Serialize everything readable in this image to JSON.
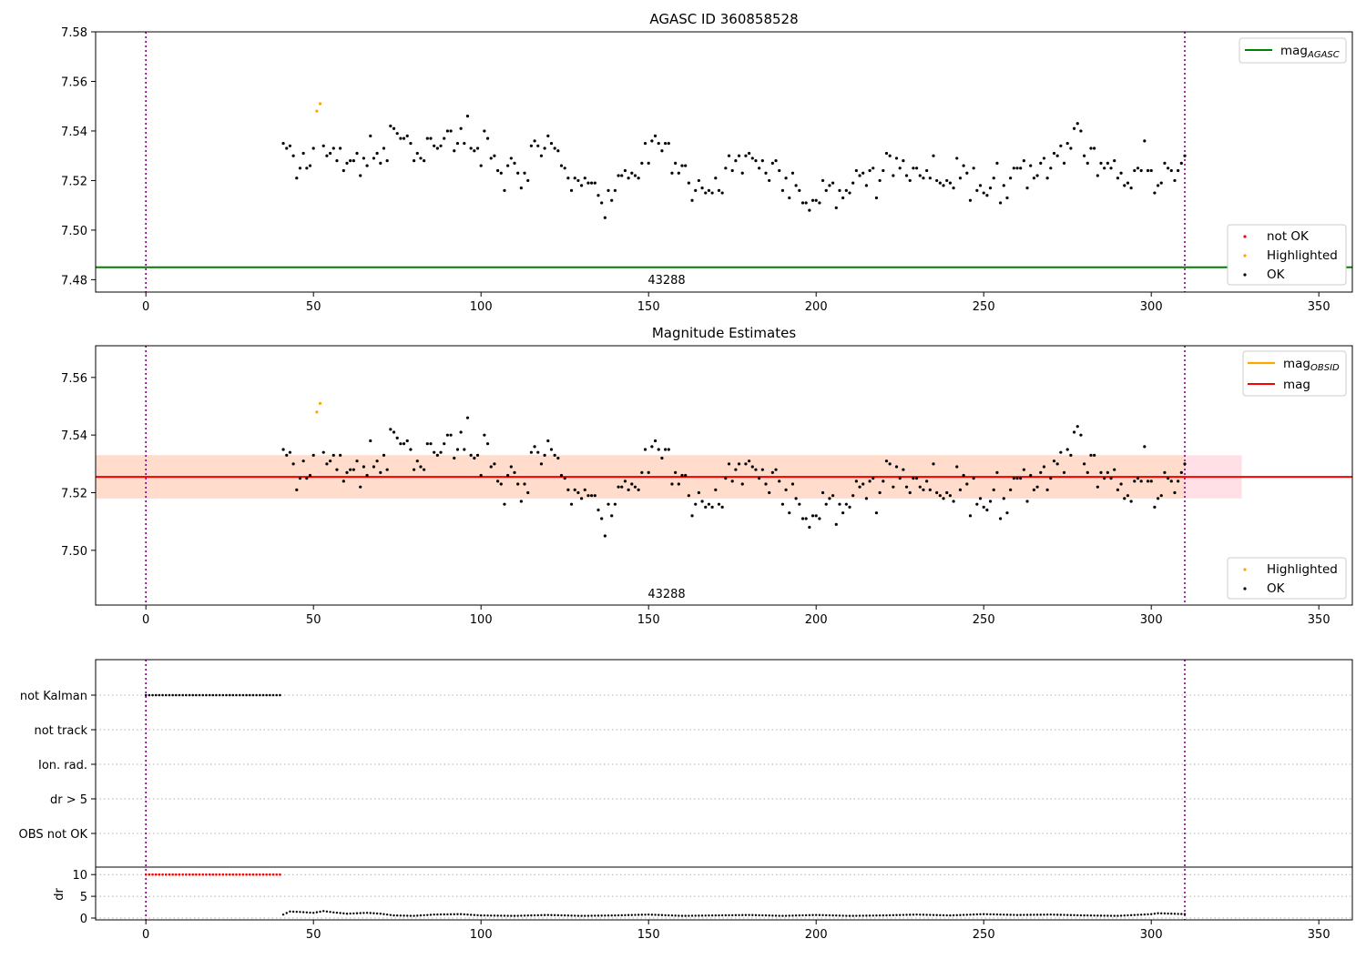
{
  "colors": {
    "ok": "#000000",
    "highlighted": "#ffa500",
    "not_ok": "#ff0000",
    "agasc_line": "#008000",
    "mag_line": "#ff0000",
    "obsid_line": "#ffa500",
    "obsid_band": "#ffdcc8",
    "mag_band": "#ffe0e6",
    "marker_line": "#800080",
    "grid": "#b0b0b0"
  },
  "chart_data": [
    {
      "type": "scatter",
      "title": "AGASC ID 360858528",
      "xlim": [
        -15,
        360
      ],
      "ylim": [
        7.475,
        7.58
      ],
      "xticks": [
        "0",
        "50",
        "100",
        "150",
        "200",
        "250",
        "300",
        "350"
      ],
      "yticks": [
        "7.48",
        "7.50",
        "7.52",
        "7.54",
        "7.56",
        "7.58"
      ],
      "vlines": [
        0,
        310
      ],
      "hline": {
        "y": 7.485,
        "name": "mag",
        "sub": "AGASC"
      },
      "obsid_label": "43288",
      "legend_lines_position": "top-right",
      "legend_points_position": "lower-right",
      "legend_points": [
        "not OK",
        "Highlighted",
        "OK"
      ],
      "highlighted": [
        [
          51,
          7.548
        ],
        [
          52,
          7.551
        ]
      ],
      "ok_series": [
        [
          41,
          7.535
        ],
        [
          42,
          7.533
        ],
        [
          43,
          7.534
        ],
        [
          44,
          7.53
        ],
        [
          45,
          7.521
        ],
        [
          46,
          7.525
        ],
        [
          47,
          7.531
        ],
        [
          48,
          7.525
        ],
        [
          49,
          7.526
        ],
        [
          50,
          7.533
        ],
        [
          53,
          7.534
        ],
        [
          54,
          7.53
        ],
        [
          55,
          7.531
        ],
        [
          56,
          7.533
        ],
        [
          57,
          7.528
        ],
        [
          58,
          7.533
        ],
        [
          59,
          7.524
        ],
        [
          60,
          7.527
        ],
        [
          61,
          7.528
        ],
        [
          62,
          7.528
        ],
        [
          63,
          7.531
        ],
        [
          64,
          7.522
        ],
        [
          65,
          7.529
        ],
        [
          66,
          7.526
        ],
        [
          67,
          7.538
        ],
        [
          68,
          7.529
        ],
        [
          69,
          7.531
        ],
        [
          70,
          7.527
        ],
        [
          71,
          7.533
        ],
        [
          72,
          7.528
        ],
        [
          73,
          7.542
        ],
        [
          74,
          7.541
        ],
        [
          75,
          7.539
        ],
        [
          76,
          7.537
        ],
        [
          77,
          7.537
        ],
        [
          78,
          7.538
        ],
        [
          79,
          7.535
        ],
        [
          80,
          7.528
        ],
        [
          81,
          7.531
        ],
        [
          82,
          7.529
        ],
        [
          83,
          7.528
        ],
        [
          84,
          7.537
        ],
        [
          85,
          7.537
        ],
        [
          86,
          7.534
        ],
        [
          87,
          7.533
        ],
        [
          88,
          7.534
        ],
        [
          89,
          7.537
        ],
        [
          90,
          7.54
        ],
        [
          91,
          7.54
        ],
        [
          92,
          7.532
        ],
        [
          93,
          7.535
        ],
        [
          94,
          7.541
        ],
        [
          95,
          7.535
        ],
        [
          96,
          7.546
        ],
        [
          97,
          7.533
        ],
        [
          98,
          7.532
        ],
        [
          99,
          7.533
        ],
        [
          100,
          7.526
        ],
        [
          101,
          7.54
        ],
        [
          102,
          7.537
        ],
        [
          103,
          7.529
        ],
        [
          104,
          7.53
        ],
        [
          105,
          7.524
        ],
        [
          106,
          7.523
        ],
        [
          107,
          7.516
        ],
        [
          108,
          7.526
        ],
        [
          109,
          7.529
        ],
        [
          110,
          7.527
        ],
        [
          111,
          7.523
        ],
        [
          112,
          7.517
        ],
        [
          113,
          7.523
        ],
        [
          114,
          7.52
        ],
        [
          115,
          7.534
        ],
        [
          116,
          7.536
        ],
        [
          117,
          7.534
        ],
        [
          118,
          7.53
        ],
        [
          119,
          7.533
        ],
        [
          120,
          7.538
        ],
        [
          121,
          7.535
        ],
        [
          122,
          7.533
        ],
        [
          123,
          7.532
        ],
        [
          124,
          7.526
        ],
        [
          125,
          7.525
        ],
        [
          126,
          7.521
        ],
        [
          127,
          7.516
        ],
        [
          128,
          7.521
        ],
        [
          129,
          7.52
        ],
        [
          130,
          7.518
        ],
        [
          131,
          7.521
        ],
        [
          132,
          7.519
        ],
        [
          133,
          7.519
        ],
        [
          134,
          7.519
        ],
        [
          135,
          7.514
        ],
        [
          136,
          7.511
        ],
        [
          137,
          7.505
        ],
        [
          138,
          7.516
        ],
        [
          139,
          7.512
        ],
        [
          140,
          7.516
        ],
        [
          141,
          7.522
        ],
        [
          142,
          7.522
        ],
        [
          143,
          7.524
        ],
        [
          144,
          7.521
        ],
        [
          145,
          7.523
        ],
        [
          146,
          7.522
        ],
        [
          147,
          7.521
        ],
        [
          148,
          7.527
        ],
        [
          149,
          7.535
        ],
        [
          150,
          7.527
        ],
        [
          151,
          7.536
        ],
        [
          152,
          7.538
        ],
        [
          153,
          7.535
        ],
        [
          154,
          7.532
        ],
        [
          155,
          7.535
        ],
        [
          156,
          7.535
        ],
        [
          157,
          7.523
        ],
        [
          158,
          7.527
        ],
        [
          159,
          7.523
        ],
        [
          160,
          7.526
        ],
        [
          161,
          7.526
        ],
        [
          162,
          7.519
        ],
        [
          163,
          7.512
        ],
        [
          164,
          7.516
        ],
        [
          165,
          7.52
        ],
        [
          166,
          7.517
        ],
        [
          167,
          7.515
        ],
        [
          168,
          7.516
        ],
        [
          169,
          7.515
        ],
        [
          170,
          7.521
        ],
        [
          171,
          7.516
        ],
        [
          172,
          7.515
        ],
        [
          173,
          7.525
        ],
        [
          174,
          7.53
        ],
        [
          175,
          7.524
        ],
        [
          176,
          7.528
        ],
        [
          177,
          7.53
        ],
        [
          178,
          7.523
        ],
        [
          179,
          7.53
        ],
        [
          180,
          7.531
        ],
        [
          181,
          7.529
        ],
        [
          182,
          7.528
        ],
        [
          183,
          7.525
        ],
        [
          184,
          7.528
        ],
        [
          185,
          7.523
        ],
        [
          186,
          7.52
        ],
        [
          187,
          7.527
        ],
        [
          188,
          7.528
        ],
        [
          189,
          7.524
        ],
        [
          190,
          7.516
        ],
        [
          191,
          7.521
        ],
        [
          192,
          7.513
        ],
        [
          193,
          7.523
        ],
        [
          194,
          7.518
        ],
        [
          195,
          7.516
        ],
        [
          196,
          7.511
        ],
        [
          197,
          7.511
        ],
        [
          198,
          7.508
        ],
        [
          199,
          7.512
        ],
        [
          200,
          7.512
        ],
        [
          201,
          7.511
        ],
        [
          202,
          7.52
        ],
        [
          203,
          7.516
        ],
        [
          204,
          7.518
        ],
        [
          205,
          7.519
        ],
        [
          206,
          7.509
        ],
        [
          207,
          7.516
        ],
        [
          208,
          7.513
        ],
        [
          209,
          7.516
        ],
        [
          210,
          7.515
        ],
        [
          211,
          7.519
        ],
        [
          212,
          7.524
        ],
        [
          213,
          7.522
        ],
        [
          214,
          7.523
        ],
        [
          215,
          7.518
        ],
        [
          216,
          7.524
        ],
        [
          217,
          7.525
        ],
        [
          218,
          7.513
        ],
        [
          219,
          7.52
        ],
        [
          220,
          7.524
        ],
        [
          221,
          7.531
        ],
        [
          222,
          7.53
        ],
        [
          223,
          7.522
        ],
        [
          224,
          7.529
        ],
        [
          225,
          7.525
        ],
        [
          226,
          7.528
        ],
        [
          227,
          7.522
        ],
        [
          228,
          7.52
        ],
        [
          229,
          7.525
        ],
        [
          230,
          7.525
        ],
        [
          231,
          7.522
        ],
        [
          232,
          7.521
        ],
        [
          233,
          7.524
        ],
        [
          234,
          7.521
        ],
        [
          235,
          7.53
        ],
        [
          236,
          7.52
        ],
        [
          237,
          7.519
        ],
        [
          238,
          7.518
        ],
        [
          239,
          7.52
        ],
        [
          240,
          7.519
        ],
        [
          241,
          7.517
        ],
        [
          242,
          7.529
        ],
        [
          243,
          7.521
        ],
        [
          244,
          7.526
        ],
        [
          245,
          7.523
        ],
        [
          246,
          7.512
        ],
        [
          247,
          7.525
        ],
        [
          248,
          7.516
        ],
        [
          249,
          7.518
        ],
        [
          250,
          7.515
        ],
        [
          251,
          7.514
        ],
        [
          252,
          7.517
        ],
        [
          253,
          7.521
        ],
        [
          254,
          7.527
        ],
        [
          255,
          7.511
        ],
        [
          256,
          7.518
        ],
        [
          257,
          7.513
        ],
        [
          258,
          7.521
        ],
        [
          259,
          7.525
        ],
        [
          260,
          7.525
        ],
        [
          261,
          7.525
        ],
        [
          262,
          7.528
        ],
        [
          263,
          7.517
        ],
        [
          264,
          7.526
        ],
        [
          265,
          7.521
        ],
        [
          266,
          7.522
        ],
        [
          267,
          7.527
        ],
        [
          268,
          7.529
        ],
        [
          269,
          7.521
        ],
        [
          270,
          7.525
        ],
        [
          271,
          7.531
        ],
        [
          272,
          7.53
        ],
        [
          273,
          7.534
        ],
        [
          274,
          7.527
        ],
        [
          275,
          7.535
        ],
        [
          276,
          7.533
        ],
        [
          277,
          7.541
        ],
        [
          278,
          7.543
        ],
        [
          279,
          7.54
        ],
        [
          280,
          7.53
        ],
        [
          281,
          7.527
        ],
        [
          282,
          7.533
        ],
        [
          283,
          7.533
        ],
        [
          284,
          7.522
        ],
        [
          285,
          7.527
        ],
        [
          286,
          7.525
        ],
        [
          287,
          7.527
        ],
        [
          288,
          7.525
        ],
        [
          289,
          7.528
        ],
        [
          290,
          7.521
        ],
        [
          291,
          7.523
        ],
        [
          292,
          7.518
        ],
        [
          293,
          7.519
        ],
        [
          294,
          7.517
        ],
        [
          295,
          7.524
        ],
        [
          296,
          7.525
        ],
        [
          297,
          7.524
        ],
        [
          298,
          7.536
        ],
        [
          299,
          7.524
        ],
        [
          300,
          7.524
        ],
        [
          301,
          7.515
        ],
        [
          302,
          7.518
        ],
        [
          303,
          7.519
        ],
        [
          304,
          7.527
        ],
        [
          305,
          7.525
        ],
        [
          306,
          7.524
        ],
        [
          307,
          7.52
        ],
        [
          308,
          7.524
        ],
        [
          309,
          7.527
        ],
        [
          310,
          7.53
        ]
      ]
    },
    {
      "type": "scatter",
      "title": "Magnitude Estimates",
      "xlim": [
        -15,
        360
      ],
      "ylim": [
        7.481,
        7.571
      ],
      "xticks": [
        "0",
        "50",
        "100",
        "150",
        "200",
        "250",
        "300",
        "350"
      ],
      "yticks": [
        "7.50",
        "7.52",
        "7.54",
        "7.56"
      ],
      "vlines": [
        0,
        310
      ],
      "mag_line": {
        "y": 7.5255,
        "name": "mag"
      },
      "obsid_line": {
        "x": [
          -15,
          310
        ],
        "y": 7.5255,
        "name": "mag",
        "sub": "OBSID"
      },
      "obsid_band": {
        "x": [
          -15,
          310
        ],
        "y": [
          7.518,
          7.533
        ]
      },
      "mag_band": {
        "x": [
          -15,
          327
        ],
        "y": [
          7.518,
          7.533
        ]
      },
      "obsid_label": "43288",
      "legend_lines_position": "top-right",
      "legend_points_position": "lower-right",
      "legend_points": [
        "Highlighted",
        "OK"
      ]
    },
    {
      "type": "scatter",
      "xlim": [
        -15,
        360
      ],
      "xticks": [
        "0",
        "50",
        "100",
        "150",
        "200",
        "250",
        "300",
        "350"
      ],
      "vlines": [
        0,
        310
      ],
      "flag_rows": [
        "not Kalman",
        "not track",
        "Ion. rad.",
        "dr > 5",
        "OBS not OK"
      ],
      "not_kalman_x": [
        0,
        40
      ],
      "ylabel": "dr",
      "dr_yticks": [
        "0",
        "5",
        "10"
      ],
      "dr_high": {
        "x": [
          0,
          40
        ],
        "y": 10
      },
      "dr_low": [
        [
          41,
          0.8
        ],
        [
          43,
          1.5
        ],
        [
          46,
          1.4
        ],
        [
          50,
          1.2
        ],
        [
          53,
          1.6
        ],
        [
          56,
          1.3
        ],
        [
          60,
          1.0
        ],
        [
          66,
          1.2
        ],
        [
          70,
          1.0
        ],
        [
          74,
          0.6
        ],
        [
          80,
          0.5
        ],
        [
          86,
          0.8
        ],
        [
          94,
          0.9
        ],
        [
          100,
          0.6
        ],
        [
          110,
          0.5
        ],
        [
          120,
          0.7
        ],
        [
          130,
          0.5
        ],
        [
          140,
          0.6
        ],
        [
          150,
          0.8
        ],
        [
          160,
          0.5
        ],
        [
          170,
          0.6
        ],
        [
          180,
          0.7
        ],
        [
          190,
          0.5
        ],
        [
          200,
          0.7
        ],
        [
          210,
          0.5
        ],
        [
          220,
          0.6
        ],
        [
          230,
          0.8
        ],
        [
          240,
          0.6
        ],
        [
          250,
          0.9
        ],
        [
          260,
          0.7
        ],
        [
          270,
          0.8
        ],
        [
          280,
          0.6
        ],
        [
          290,
          0.5
        ],
        [
          300,
          0.9
        ],
        [
          302,
          1.1
        ],
        [
          306,
          1.0
        ],
        [
          310,
          0.9
        ]
      ]
    }
  ]
}
